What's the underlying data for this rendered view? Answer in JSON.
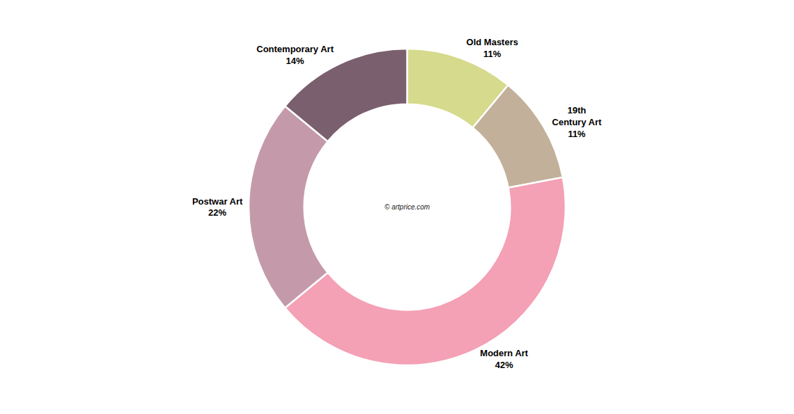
{
  "chart_data": {
    "type": "pie",
    "categories": [
      "Old Masters",
      "19th\nCentury Art",
      "Modern Art",
      "Postwar Art",
      "Contemporary Art"
    ],
    "values": [
      11,
      11,
      42,
      22,
      14
    ],
    "value_labels": [
      "11%",
      "11%",
      "42%",
      "22%",
      "14%"
    ],
    "colors": [
      "#d5da8c",
      "#c2b09a",
      "#f4a0b5",
      "#c49aaa",
      "#7a5f6e"
    ],
    "data_labels": true,
    "annotations": [
      "© artprice.com"
    ]
  }
}
